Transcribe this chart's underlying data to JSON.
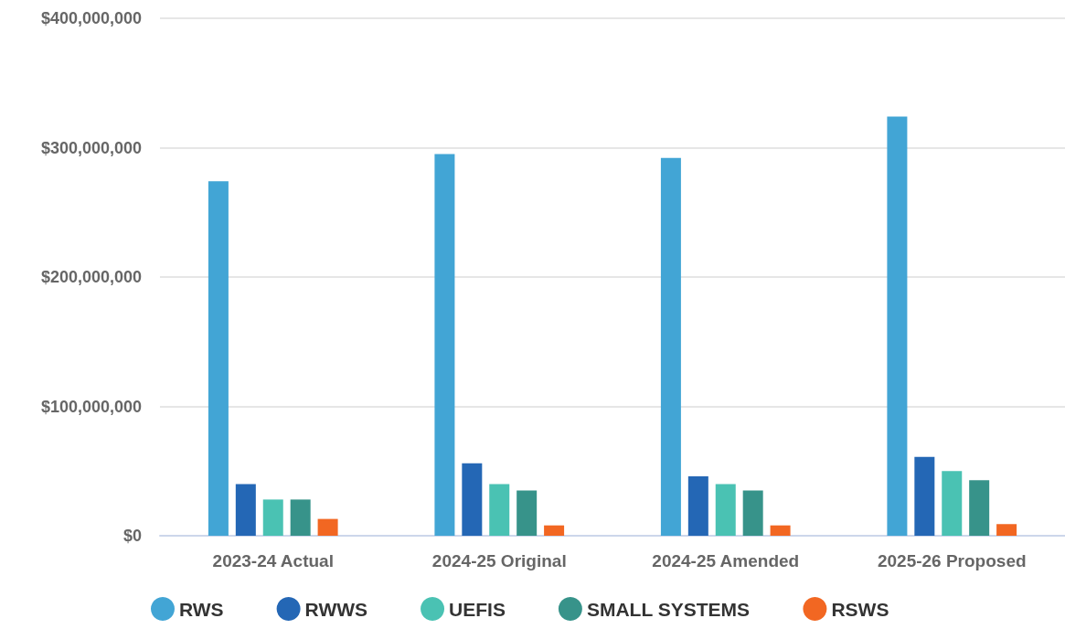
{
  "chart_data": {
    "type": "bar",
    "categories": [
      "2023-24 Actual",
      "2024-25 Original",
      "2024-25 Amended",
      "2025-26 Proposed"
    ],
    "series": [
      {
        "name": "RWS",
        "color": "#42a5d5",
        "values": [
          274000000,
          295000000,
          292000000,
          324000000
        ]
      },
      {
        "name": "RWWS",
        "color": "#2467b5",
        "values": [
          40000000,
          56000000,
          46000000,
          61000000
        ]
      },
      {
        "name": "UEFIS",
        "color": "#4ac2b3",
        "values": [
          28000000,
          40000000,
          40000000,
          50000000
        ]
      },
      {
        "name": "SMALL SYSTEMS",
        "color": "#37938a",
        "values": [
          28000000,
          35000000,
          35000000,
          43000000
        ]
      },
      {
        "name": "RSWS",
        "color": "#f26722",
        "values": [
          13000000,
          8000000,
          8000000,
          9000000
        ]
      }
    ],
    "ylim": [
      0,
      400000000
    ],
    "yticks": [
      {
        "value": 0,
        "label": "$0"
      },
      {
        "value": 100000000,
        "label": "$100,000,000"
      },
      {
        "value": 200000000,
        "label": "$200,000,000"
      },
      {
        "value": 300000000,
        "label": "$300,000,000"
      },
      {
        "value": 400000000,
        "label": "$400,000,000"
      }
    ],
    "grid": "y",
    "legend": "bottom"
  }
}
